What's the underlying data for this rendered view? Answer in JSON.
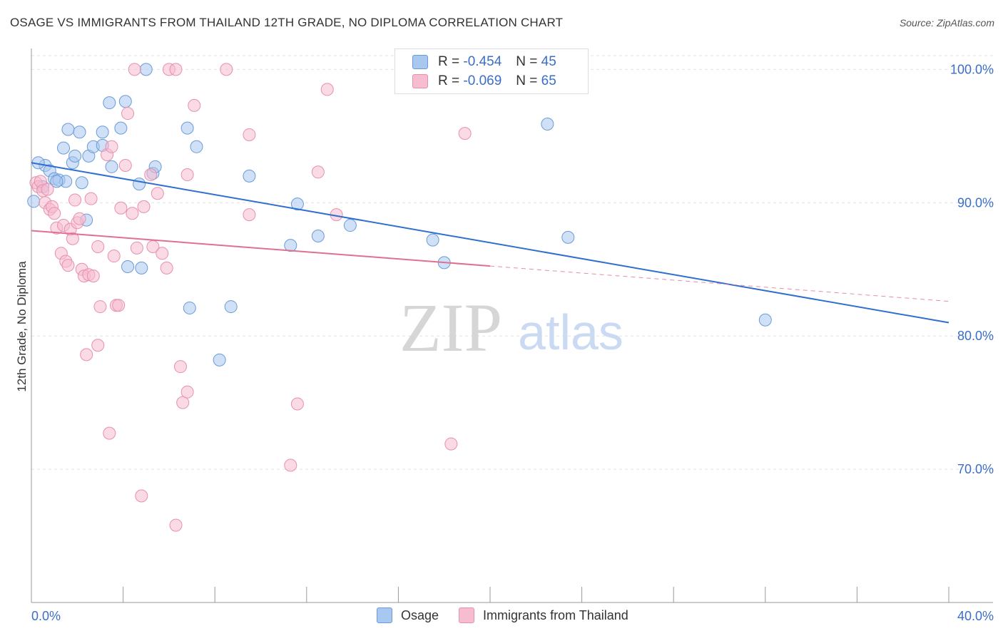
{
  "title": "OSAGE VS IMMIGRANTS FROM THAILAND 12TH GRADE, NO DIPLOMA CORRELATION CHART",
  "source": "Source: ZipAtlas.com",
  "watermark": {
    "zip": "ZIP",
    "atlas": "atlas"
  },
  "legend": {
    "osage": {
      "r_label": "R = ",
      "r_value": "-0.454",
      "n_label": "N = ",
      "n_value": "45"
    },
    "thailand": {
      "r_label": "R = ",
      "r_value": "-0.069",
      "n_label": "N = ",
      "n_value": "65"
    }
  },
  "bottom_legend": {
    "osage": "Osage",
    "thailand": "Immigrants from Thailand"
  },
  "colors": {
    "osage_fill": "#a9c8f0",
    "osage_stroke": "#6a9bd8",
    "osage_line": "#2f6fce",
    "thailand_fill": "#f6bcd0",
    "thailand_stroke": "#e88fad",
    "thailand_line": "#e0708f",
    "axis_label": "#3a6ec8",
    "grid": "#e2e2e2"
  },
  "chart_data": {
    "type": "scatter",
    "xlabel": "",
    "ylabel": "12th Grade, No Diploma",
    "xlim": [
      0,
      40
    ],
    "ylim": [
      60,
      102
    ],
    "x_tick_labels": [
      "0.0%",
      "40.0%"
    ],
    "y_ticks": [
      70,
      80,
      90,
      100
    ],
    "y_tick_labels": [
      "70.0%",
      "80.0%",
      "90.0%",
      "100.0%"
    ],
    "grid": true,
    "series": [
      {
        "name": "Osage",
        "trend": {
          "x": [
            0,
            40
          ],
          "y": [
            93.0,
            81.0
          ],
          "solid_to": 40
        },
        "points": [
          [
            0.1,
            90.1
          ],
          [
            0.6,
            92.8
          ],
          [
            0.8,
            92.4
          ],
          [
            1.0,
            91.8
          ],
          [
            1.2,
            91.7
          ],
          [
            1.4,
            94.1
          ],
          [
            1.5,
            91.6
          ],
          [
            1.6,
            95.5
          ],
          [
            1.8,
            93.0
          ],
          [
            1.9,
            93.5
          ],
          [
            2.1,
            95.3
          ],
          [
            2.2,
            91.5
          ],
          [
            2.4,
            88.7
          ],
          [
            2.5,
            93.5
          ],
          [
            2.7,
            94.2
          ],
          [
            3.1,
            95.3
          ],
          [
            3.1,
            94.3
          ],
          [
            3.4,
            97.5
          ],
          [
            3.5,
            92.7
          ],
          [
            3.9,
            95.6
          ],
          [
            4.1,
            97.6
          ],
          [
            4.2,
            85.2
          ],
          [
            4.7,
            91.4
          ],
          [
            4.8,
            85.1
          ],
          [
            5.0,
            100.0
          ],
          [
            5.3,
            92.2
          ],
          [
            5.4,
            92.7
          ],
          [
            6.8,
            95.6
          ],
          [
            6.9,
            82.1
          ],
          [
            7.2,
            94.2
          ],
          [
            8.2,
            78.2
          ],
          [
            8.7,
            82.2
          ],
          [
            9.5,
            92.0
          ],
          [
            11.3,
            86.8
          ],
          [
            11.6,
            89.9
          ],
          [
            12.5,
            87.5
          ],
          [
            13.9,
            88.3
          ],
          [
            17.5,
            87.2
          ],
          [
            18.0,
            85.5
          ],
          [
            22.5,
            95.9
          ],
          [
            23.4,
            87.4
          ],
          [
            32.0,
            81.2
          ],
          [
            0.3,
            93.0
          ],
          [
            0.5,
            91.2
          ],
          [
            1.1,
            91.6
          ]
        ]
      },
      {
        "name": "Immigrants from Thailand",
        "trend": {
          "x": [
            0,
            40
          ],
          "y": [
            87.9,
            82.6
          ],
          "solid_to": 20
        },
        "points": [
          [
            0.2,
            91.5
          ],
          [
            0.3,
            91.2
          ],
          [
            0.4,
            91.6
          ],
          [
            0.5,
            90.9
          ],
          [
            0.6,
            90.0
          ],
          [
            0.7,
            91.0
          ],
          [
            0.8,
            89.5
          ],
          [
            0.9,
            89.7
          ],
          [
            1.0,
            89.2
          ],
          [
            1.1,
            88.1
          ],
          [
            1.3,
            86.2
          ],
          [
            1.4,
            88.3
          ],
          [
            1.5,
            85.6
          ],
          [
            1.6,
            85.3
          ],
          [
            1.7,
            88.0
          ],
          [
            1.8,
            87.3
          ],
          [
            1.9,
            90.2
          ],
          [
            2.0,
            88.5
          ],
          [
            2.1,
            88.8
          ],
          [
            2.2,
            85.0
          ],
          [
            2.3,
            84.5
          ],
          [
            2.5,
            84.6
          ],
          [
            2.6,
            90.3
          ],
          [
            2.7,
            84.5
          ],
          [
            2.9,
            86.7
          ],
          [
            3.0,
            82.2
          ],
          [
            3.3,
            93.6
          ],
          [
            3.5,
            94.2
          ],
          [
            3.6,
            86.0
          ],
          [
            3.7,
            82.3
          ],
          [
            3.8,
            82.3
          ],
          [
            3.9,
            89.6
          ],
          [
            4.1,
            92.8
          ],
          [
            4.2,
            96.7
          ],
          [
            4.4,
            89.2
          ],
          [
            4.6,
            86.6
          ],
          [
            4.9,
            89.7
          ],
          [
            5.2,
            92.1
          ],
          [
            5.3,
            86.7
          ],
          [
            5.5,
            90.7
          ],
          [
            5.7,
            86.2
          ],
          [
            5.9,
            85.1
          ],
          [
            6.0,
            100.0
          ],
          [
            6.3,
            100.0
          ],
          [
            6.5,
            77.7
          ],
          [
            6.6,
            75.0
          ],
          [
            6.8,
            92.1
          ],
          [
            7.1,
            97.3
          ],
          [
            8.5,
            100.0
          ],
          [
            9.5,
            89.1
          ],
          [
            9.5,
            95.1
          ],
          [
            11.3,
            70.3
          ],
          [
            11.6,
            74.9
          ],
          [
            12.5,
            92.3
          ],
          [
            12.9,
            98.5
          ],
          [
            13.3,
            89.1
          ],
          [
            18.3,
            71.9
          ],
          [
            18.9,
            95.2
          ],
          [
            2.4,
            78.6
          ],
          [
            2.9,
            79.3
          ],
          [
            3.4,
            72.7
          ],
          [
            4.8,
            68.0
          ],
          [
            6.3,
            65.8
          ],
          [
            6.8,
            75.8
          ],
          [
            4.5,
            100.0
          ]
        ]
      }
    ]
  }
}
